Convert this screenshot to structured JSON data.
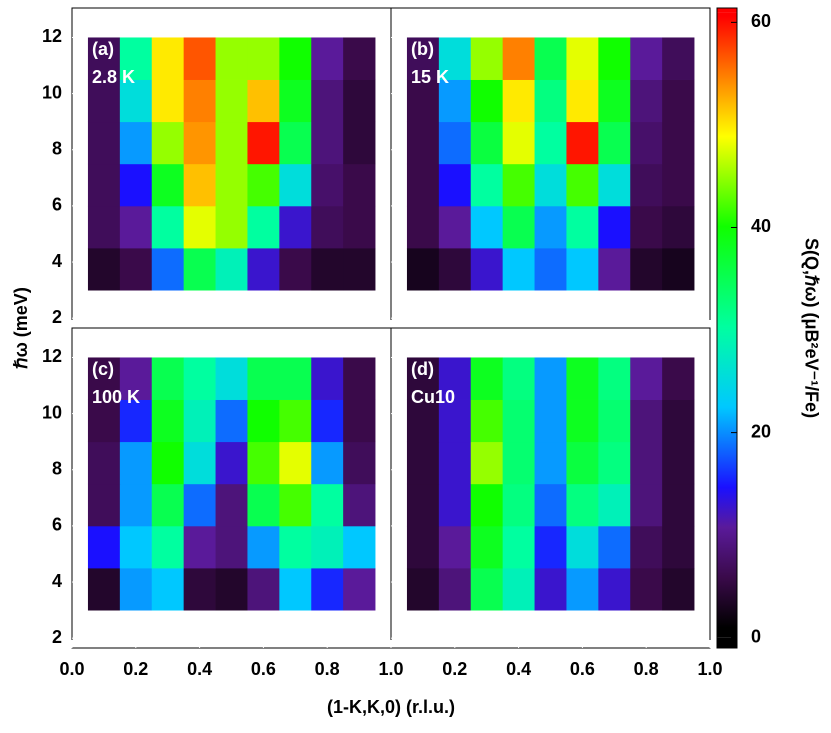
{
  "chart_data": {
    "type": "heatmap",
    "x_label": "(1-K,K,0) (r.l.u.)",
    "y_label": "ℏω (meV)",
    "xlim": [
      0,
      1
    ],
    "ylim": [
      1.65,
      13.05
    ],
    "xticks": [
      {
        "value": 0,
        "label": "0.0"
      },
      0.2,
      0.4,
      0.6,
      0.8,
      {
        "value": 1,
        "label": "1.0"
      }
    ],
    "yticks": [
      2,
      4,
      6,
      8,
      10,
      12
    ],
    "x_bins": [
      0.05,
      0.15,
      0.25,
      0.35,
      0.45,
      0.55,
      0.65,
      0.75,
      0.85,
      0.95
    ],
    "y_bins": [
      3,
      4.5,
      6,
      7.5,
      9,
      10.5,
      12
    ],
    "colorbar": {
      "label": "S(Q,ℏω) (μB²eV⁻¹/Fe)",
      "lim": [
        -1,
        61.4
      ],
      "ticks": [
        0,
        20,
        40,
        60
      ],
      "colormap": [
        {
          "value": 0,
          "color": "#000000"
        },
        {
          "value": 5,
          "color": "#3a0a4a"
        },
        {
          "value": 10,
          "color": "#5a1a9a"
        },
        {
          "value": 14,
          "color": "#1a10ff"
        },
        {
          "value": 22,
          "color": "#00c8ff"
        },
        {
          "value": 30,
          "color": "#00ffa0"
        },
        {
          "value": 40,
          "color": "#10ff00"
        },
        {
          "value": 49,
          "color": "#ffff00"
        },
        {
          "value": 55,
          "color": "#ff8000"
        },
        {
          "value": 61,
          "color": "#ff0000"
        }
      ]
    },
    "panels": [
      {
        "label": "(a)",
        "temperature": "2.8 K",
        "z": [
          [
            3,
            5,
            18,
            35,
            28,
            12,
            5,
            3,
            3
          ],
          [
            6,
            10,
            30,
            48,
            45,
            30,
            12,
            6,
            5
          ],
          [
            6,
            14,
            38,
            52,
            45,
            42,
            25,
            7,
            5
          ],
          [
            6,
            20,
            45,
            54,
            45,
            60,
            35,
            8,
            4
          ],
          [
            6,
            25,
            50,
            55,
            45,
            52,
            38,
            8,
            4
          ],
          [
            6,
            30,
            50,
            57,
            45,
            45,
            40,
            10,
            5
          ]
        ]
      },
      {
        "label": "(b)",
        "temperature": "15 K",
        "z": [
          [
            2,
            4,
            12,
            22,
            18,
            22,
            10,
            3,
            2
          ],
          [
            5,
            10,
            22,
            35,
            20,
            30,
            14,
            5,
            4
          ],
          [
            5,
            14,
            30,
            42,
            25,
            42,
            25,
            6,
            5
          ],
          [
            5,
            18,
            36,
            48,
            30,
            60,
            35,
            7,
            5
          ],
          [
            5,
            20,
            40,
            50,
            32,
            50,
            38,
            8,
            5
          ],
          [
            6,
            25,
            45,
            55,
            35,
            48,
            40,
            10,
            6
          ]
        ]
      },
      {
        "label": "(c)",
        "temperature": "100 K",
        "z": [
          [
            3,
            20,
            22,
            4,
            3,
            8,
            22,
            15,
            10
          ],
          [
            14,
            22,
            30,
            10,
            8,
            20,
            30,
            28,
            22
          ],
          [
            6,
            20,
            35,
            18,
            8,
            35,
            42,
            30,
            8
          ],
          [
            6,
            20,
            40,
            25,
            12,
            42,
            48,
            20,
            6
          ],
          [
            5,
            15,
            38,
            28,
            18,
            40,
            42,
            15,
            5
          ],
          [
            5,
            10,
            35,
            30,
            25,
            35,
            35,
            12,
            5
          ]
        ]
      },
      {
        "label": "(d)",
        "temperature": "Cu10",
        "z": [
          [
            3,
            8,
            35,
            28,
            12,
            20,
            12,
            5,
            3
          ],
          [
            4,
            10,
            38,
            30,
            15,
            25,
            18,
            6,
            4
          ],
          [
            4,
            12,
            40,
            32,
            18,
            32,
            28,
            8,
            4
          ],
          [
            4,
            12,
            45,
            33,
            20,
            36,
            32,
            8,
            4
          ],
          [
            4,
            12,
            42,
            33,
            20,
            38,
            33,
            8,
            4
          ],
          [
            4,
            12,
            38,
            32,
            20,
            38,
            32,
            10,
            5
          ]
        ]
      }
    ]
  }
}
